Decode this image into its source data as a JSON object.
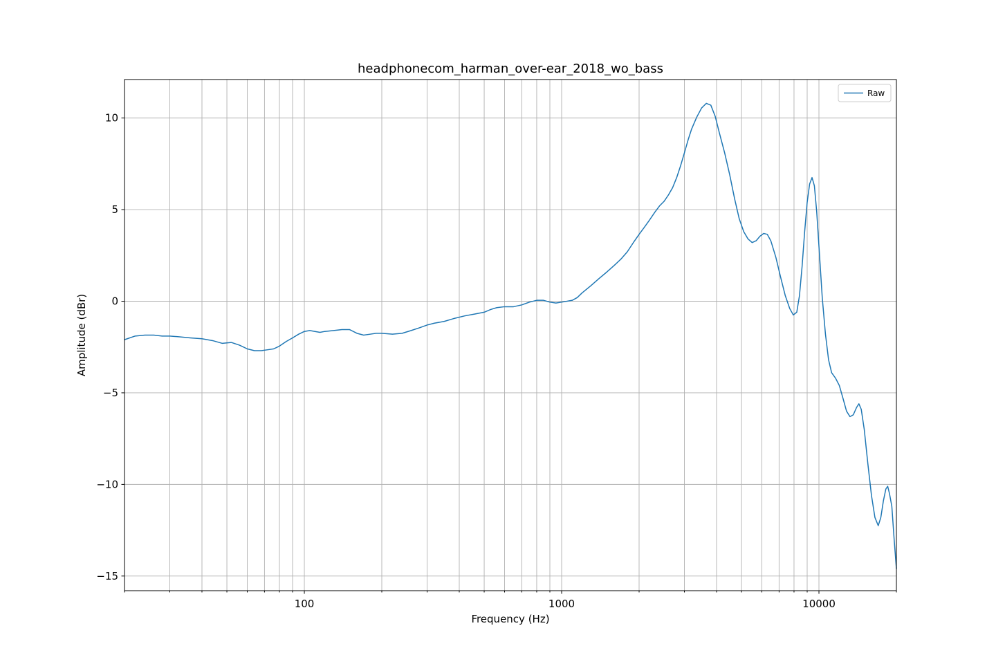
{
  "chart_data": {
    "type": "line",
    "title": "headphonecom_harman_over-ear_2018_wo_bass",
    "xlabel": "Frequency (Hz)",
    "ylabel": "Amplitude (dBr)",
    "xscale": "log",
    "xlim": [
      20,
      20000
    ],
    "ylim": [
      -15.8,
      12.1
    ],
    "grid": true,
    "legend_position": "top-right",
    "x_tick_labels": [
      {
        "value": 100,
        "label": "100"
      },
      {
        "value": 1000,
        "label": "1000"
      },
      {
        "value": 10000,
        "label": "10000"
      }
    ],
    "y_tick_labels": [
      {
        "value": 10,
        "label": "10"
      },
      {
        "value": 5,
        "label": "5"
      },
      {
        "value": 0,
        "label": "0"
      },
      {
        "value": -5,
        "label": "−5"
      },
      {
        "value": -10,
        "label": "−10"
      },
      {
        "value": -15,
        "label": "−15"
      }
    ],
    "series": [
      {
        "name": "Raw",
        "color": "#1f77b4",
        "points": [
          [
            20,
            -2.1
          ],
          [
            22,
            -1.9
          ],
          [
            24,
            -1.85
          ],
          [
            26,
            -1.85
          ],
          [
            28,
            -1.9
          ],
          [
            30,
            -1.9
          ],
          [
            33,
            -1.95
          ],
          [
            36,
            -2.0
          ],
          [
            40,
            -2.05
          ],
          [
            44,
            -2.15
          ],
          [
            48,
            -2.3
          ],
          [
            52,
            -2.25
          ],
          [
            56,
            -2.4
          ],
          [
            60,
            -2.6
          ],
          [
            64,
            -2.7
          ],
          [
            68,
            -2.7
          ],
          [
            72,
            -2.65
          ],
          [
            76,
            -2.6
          ],
          [
            80,
            -2.45
          ],
          [
            85,
            -2.2
          ],
          [
            90,
            -2.0
          ],
          [
            95,
            -1.8
          ],
          [
            100,
            -1.65
          ],
          [
            105,
            -1.6
          ],
          [
            110,
            -1.65
          ],
          [
            115,
            -1.7
          ],
          [
            120,
            -1.65
          ],
          [
            130,
            -1.6
          ],
          [
            140,
            -1.55
          ],
          [
            150,
            -1.55
          ],
          [
            160,
            -1.75
          ],
          [
            170,
            -1.85
          ],
          [
            180,
            -1.8
          ],
          [
            190,
            -1.75
          ],
          [
            200,
            -1.75
          ],
          [
            220,
            -1.8
          ],
          [
            240,
            -1.75
          ],
          [
            260,
            -1.6
          ],
          [
            280,
            -1.45
          ],
          [
            300,
            -1.3
          ],
          [
            320,
            -1.2
          ],
          [
            350,
            -1.1
          ],
          [
            380,
            -0.95
          ],
          [
            420,
            -0.8
          ],
          [
            460,
            -0.7
          ],
          [
            500,
            -0.6
          ],
          [
            530,
            -0.45
          ],
          [
            560,
            -0.35
          ],
          [
            600,
            -0.3
          ],
          [
            650,
            -0.3
          ],
          [
            700,
            -0.2
          ],
          [
            750,
            -0.05
          ],
          [
            800,
            0.05
          ],
          [
            850,
            0.05
          ],
          [
            900,
            -0.05
          ],
          [
            950,
            -0.1
          ],
          [
            1000,
            -0.05
          ],
          [
            1050,
            0.0
          ],
          [
            1100,
            0.05
          ],
          [
            1150,
            0.2
          ],
          [
            1200,
            0.45
          ],
          [
            1300,
            0.85
          ],
          [
            1400,
            1.25
          ],
          [
            1500,
            1.6
          ],
          [
            1600,
            1.95
          ],
          [
            1700,
            2.3
          ],
          [
            1800,
            2.7
          ],
          [
            1900,
            3.2
          ],
          [
            2000,
            3.65
          ],
          [
            2100,
            4.05
          ],
          [
            2200,
            4.45
          ],
          [
            2300,
            4.85
          ],
          [
            2400,
            5.2
          ],
          [
            2500,
            5.45
          ],
          [
            2600,
            5.8
          ],
          [
            2700,
            6.2
          ],
          [
            2800,
            6.75
          ],
          [
            2900,
            7.4
          ],
          [
            3000,
            8.1
          ],
          [
            3100,
            8.8
          ],
          [
            3200,
            9.4
          ],
          [
            3350,
            10.05
          ],
          [
            3500,
            10.55
          ],
          [
            3650,
            10.8
          ],
          [
            3800,
            10.7
          ],
          [
            3950,
            10.1
          ],
          [
            4100,
            9.2
          ],
          [
            4300,
            8.1
          ],
          [
            4500,
            6.9
          ],
          [
            4700,
            5.6
          ],
          [
            4900,
            4.5
          ],
          [
            5100,
            3.8
          ],
          [
            5300,
            3.4
          ],
          [
            5500,
            3.2
          ],
          [
            5700,
            3.3
          ],
          [
            5900,
            3.55
          ],
          [
            6100,
            3.7
          ],
          [
            6300,
            3.65
          ],
          [
            6500,
            3.3
          ],
          [
            6800,
            2.4
          ],
          [
            7100,
            1.3
          ],
          [
            7400,
            0.3
          ],
          [
            7700,
            -0.4
          ],
          [
            7950,
            -0.75
          ],
          [
            8200,
            -0.6
          ],
          [
            8400,
            0.3
          ],
          [
            8600,
            1.9
          ],
          [
            8800,
            3.8
          ],
          [
            9000,
            5.4
          ],
          [
            9200,
            6.4
          ],
          [
            9400,
            6.75
          ],
          [
            9600,
            6.3
          ],
          [
            9800,
            4.9
          ],
          [
            10000,
            3.0
          ],
          [
            10300,
            0.2
          ],
          [
            10600,
            -1.8
          ],
          [
            10900,
            -3.2
          ],
          [
            11200,
            -3.9
          ],
          [
            11600,
            -4.2
          ],
          [
            12000,
            -4.6
          ],
          [
            12400,
            -5.3
          ],
          [
            12800,
            -6.0
          ],
          [
            13200,
            -6.3
          ],
          [
            13600,
            -6.2
          ],
          [
            14000,
            -5.8
          ],
          [
            14300,
            -5.6
          ],
          [
            14600,
            -5.9
          ],
          [
            15000,
            -7.0
          ],
          [
            15500,
            -8.9
          ],
          [
            16000,
            -10.6
          ],
          [
            16500,
            -11.8
          ],
          [
            17000,
            -12.25
          ],
          [
            17400,
            -11.8
          ],
          [
            17800,
            -10.9
          ],
          [
            18200,
            -10.25
          ],
          [
            18500,
            -10.1
          ],
          [
            18800,
            -10.5
          ],
          [
            19200,
            -11.2
          ],
          [
            19600,
            -13.0
          ],
          [
            20000,
            -14.6
          ]
        ]
      }
    ]
  }
}
